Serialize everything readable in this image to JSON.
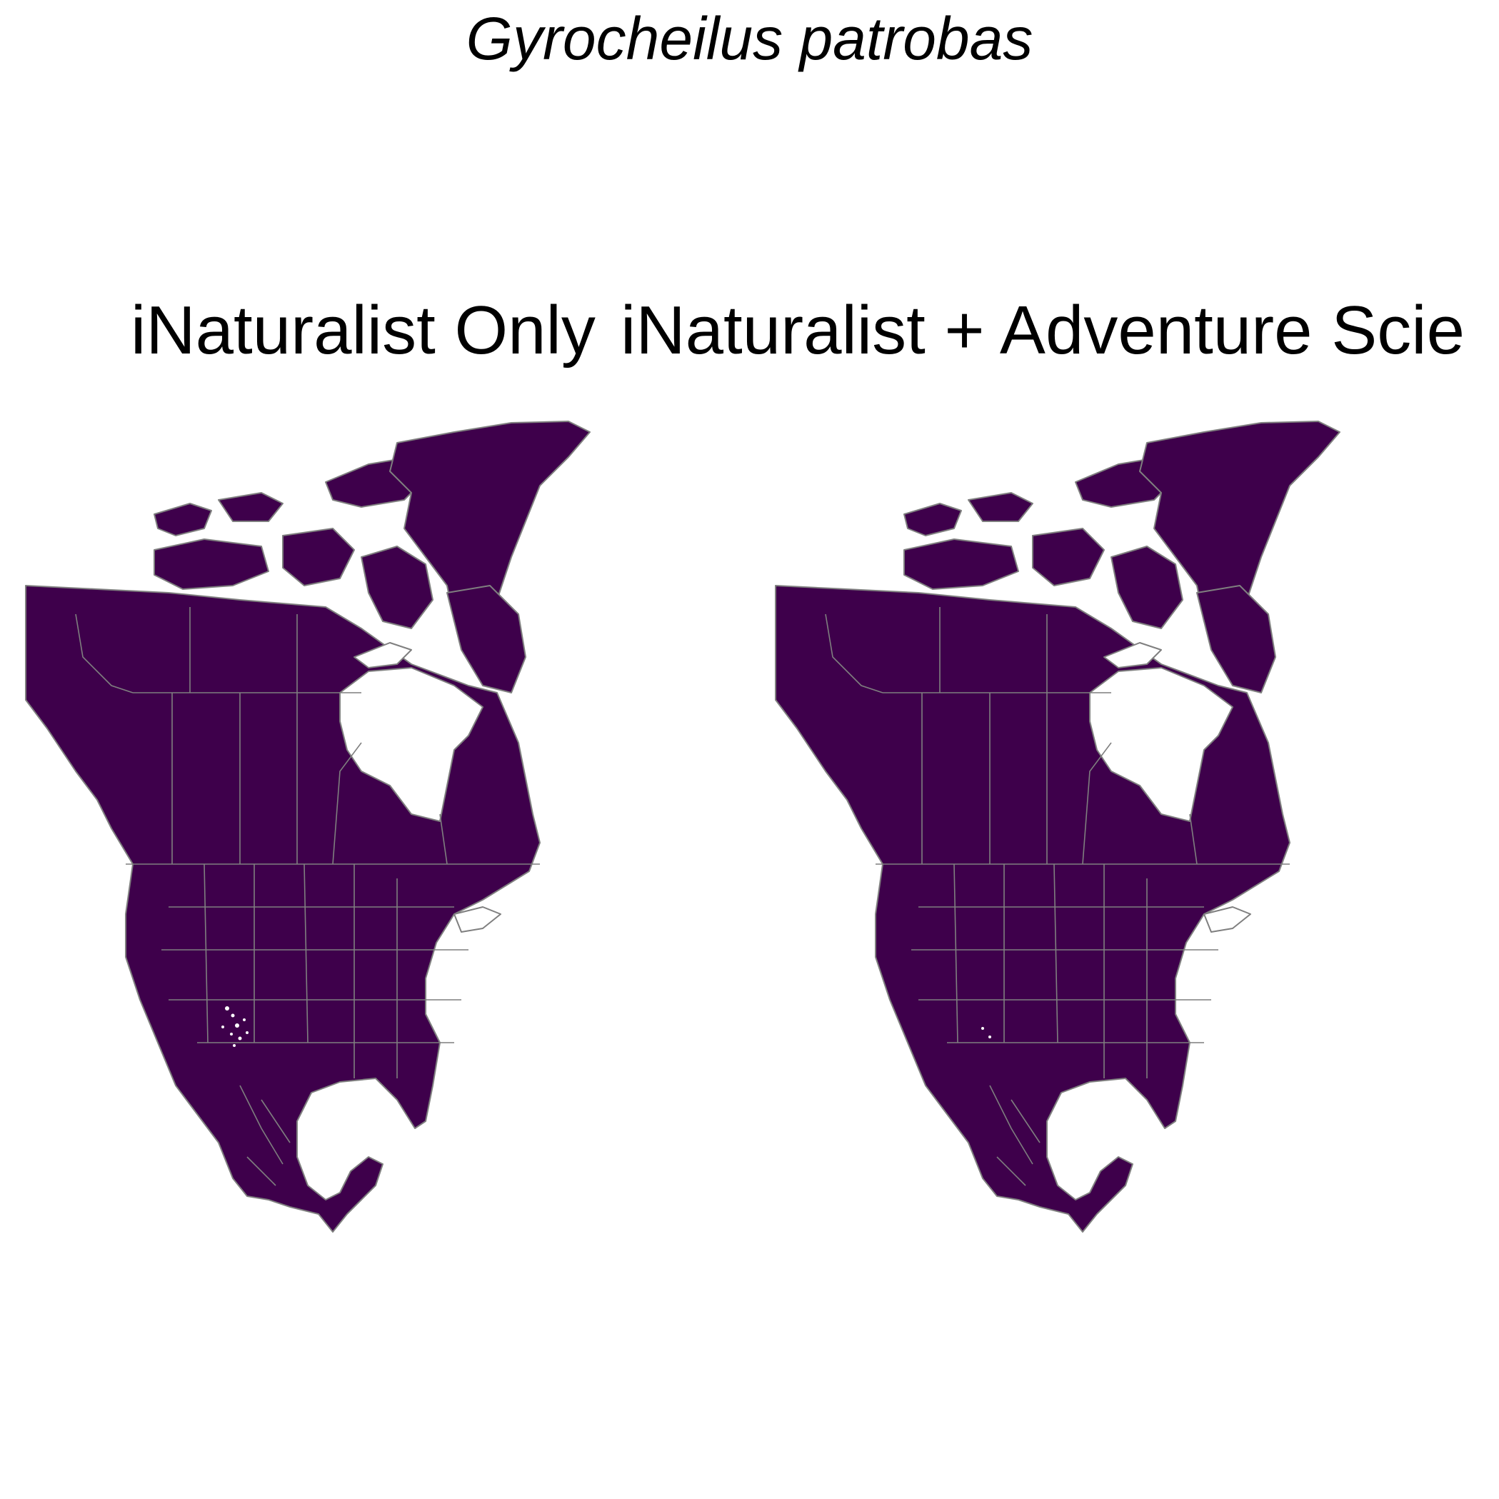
{
  "title": "Gyrocheilus patrobas",
  "panels": [
    {
      "title": "iNaturalist Only"
    },
    {
      "title": "iNaturalist + Adventure Scie"
    }
  ],
  "colors": {
    "land": "#3e004b",
    "border": "#7f7f7f",
    "background": "#ffffff"
  }
}
